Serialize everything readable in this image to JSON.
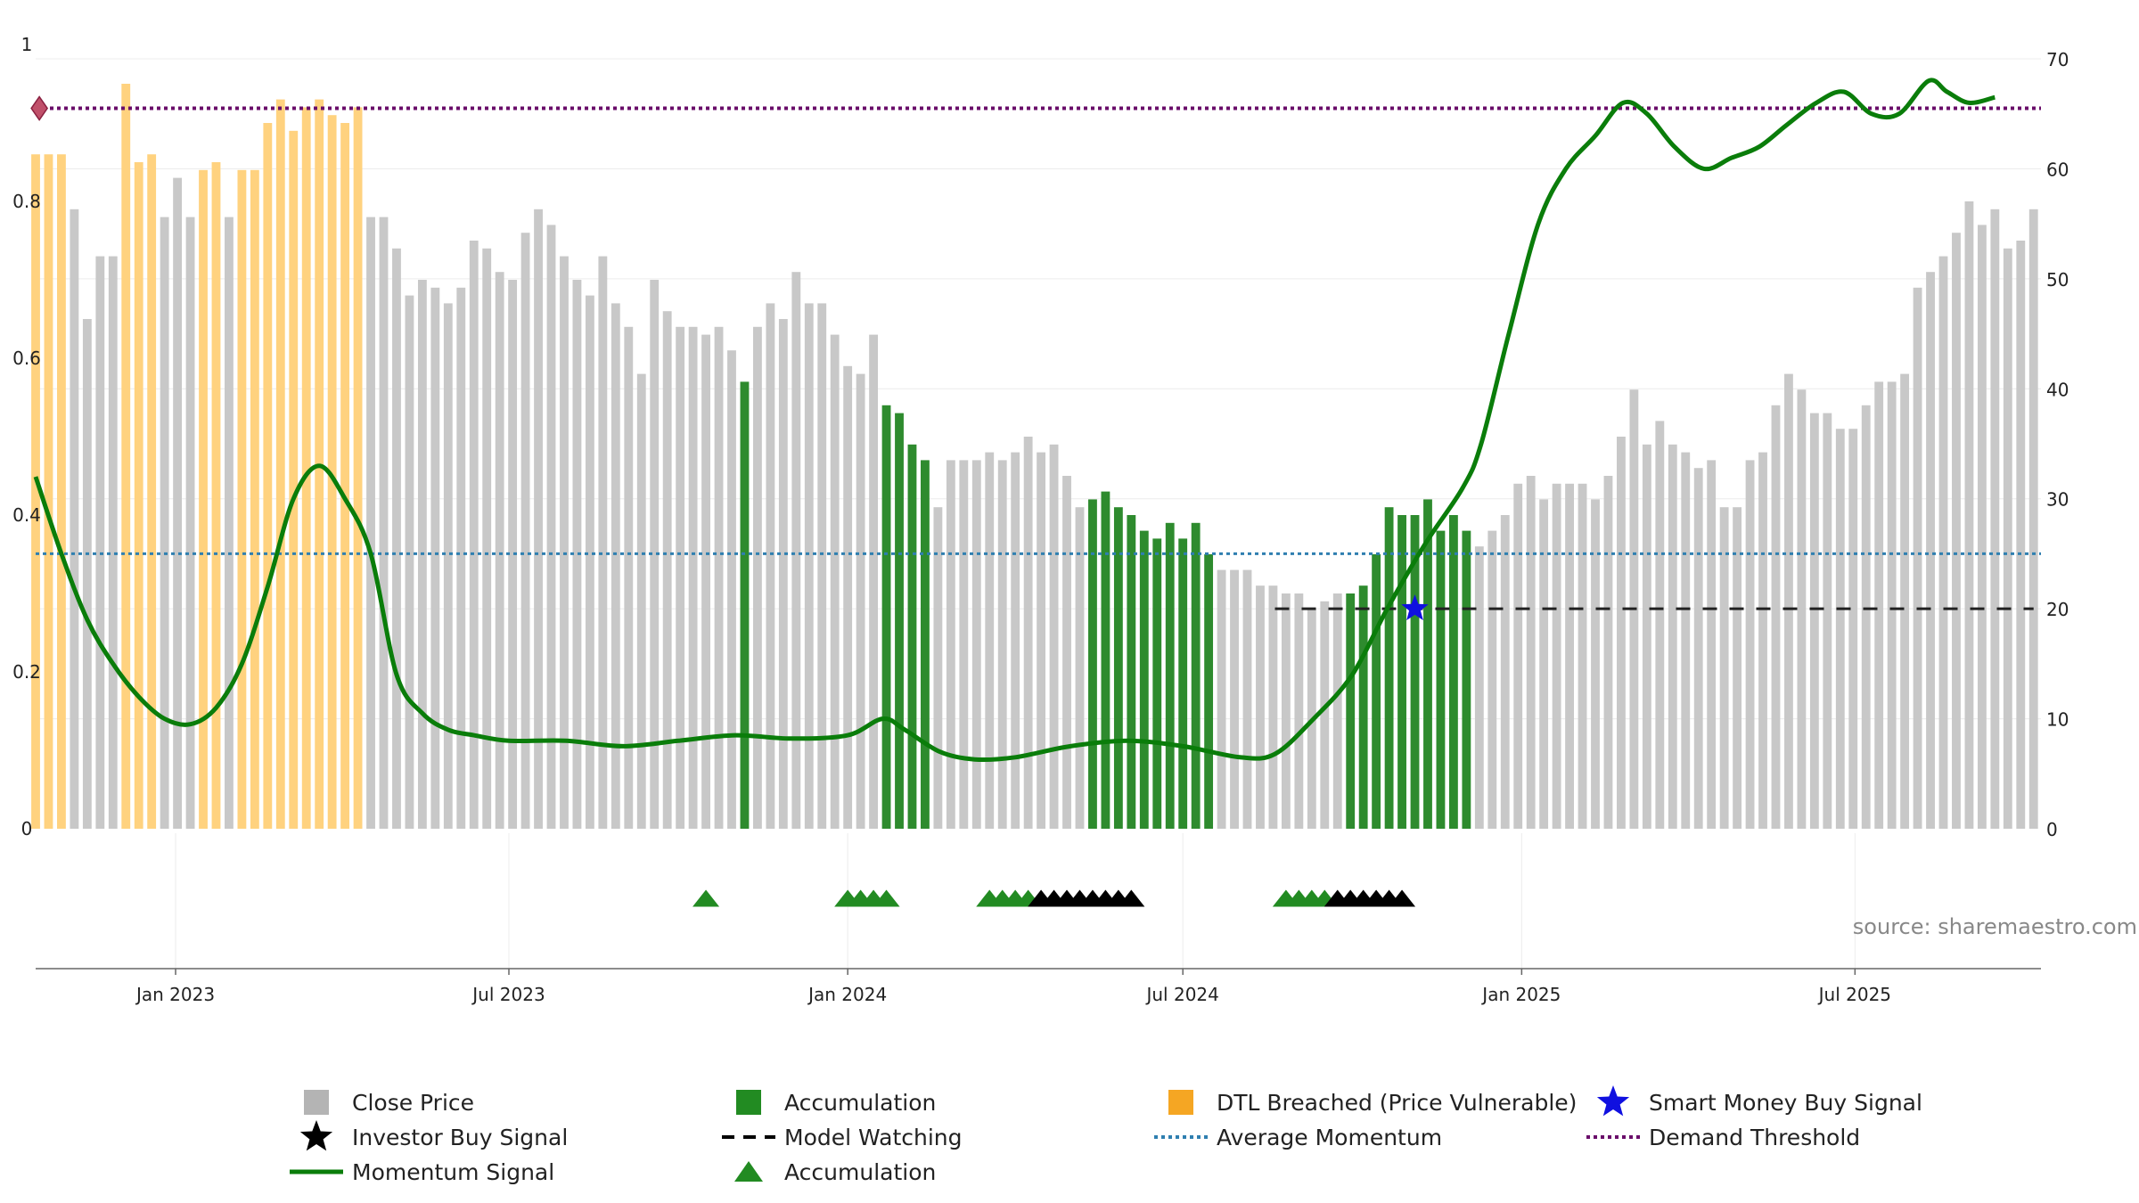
{
  "chart_data": {
    "type": "bar",
    "x_axis": {
      "type": "date",
      "tick_labels": [
        "Jan 2023",
        "Jul 2023",
        "Jan 2024",
        "Jul 2024",
        "Jan 2025",
        "Jul 2025"
      ],
      "tick_dates": [
        "2023-01-01",
        "2023-07-01",
        "2024-01-01",
        "2024-07-01",
        "2025-01-01",
        "2025-07-01"
      ],
      "range": [
        "2022-10-17",
        "2025-10-10"
      ]
    },
    "y_left": {
      "range": [
        0,
        1
      ],
      "ticks": [
        "0",
        "0.2",
        "0.4",
        "0.6",
        "0.8",
        "1"
      ]
    },
    "y_right": {
      "range": [
        0,
        70
      ],
      "ticks": [
        "0",
        "10",
        "20",
        "30",
        "40",
        "50",
        "60",
        "70"
      ]
    },
    "grid": true,
    "legend_position": "bottom",
    "source_text": "source: sharemaestro.com",
    "colors": {
      "close": "#c8c8c8",
      "accumulation": "#2e8b2e",
      "dtl": "#ffd27f",
      "momentum": "#0a7d0a",
      "smart_money": "#1010e0",
      "investor": "#000000",
      "watching": "#222222",
      "avg_momentum": "#2f7fb0",
      "demand": "#6a0d6a"
    },
    "bar_start_date": "2022-10-17",
    "bar_interval_days": 7,
    "close_price": [
      0.86,
      0.86,
      0.86,
      0.79,
      0.65,
      0.73,
      0.73,
      0.95,
      0.85,
      0.86,
      0.78,
      0.83,
      0.78,
      0.84,
      0.85,
      0.78,
      0.84,
      0.84,
      0.9,
      0.93,
      0.89,
      0.92,
      0.93,
      0.91,
      0.9,
      0.92,
      0.78,
      0.78,
      0.74,
      0.68,
      0.7,
      0.69,
      0.67,
      0.69,
      0.75,
      0.74,
      0.71,
      0.7,
      0.76,
      0.79,
      0.77,
      0.73,
      0.7,
      0.68,
      0.73,
      0.67,
      0.64,
      0.58,
      0.7,
      0.66,
      0.64,
      0.64,
      0.63,
      0.64,
      0.61,
      0.57,
      0.64,
      0.67,
      0.65,
      0.71,
      0.67,
      0.67,
      0.63,
      0.59,
      0.58,
      0.63,
      0.54,
      0.53,
      0.49,
      0.47,
      0.41,
      0.47,
      0.47,
      0.47,
      0.48,
      0.47,
      0.48,
      0.5,
      0.48,
      0.49,
      0.45,
      0.41,
      0.42,
      0.43,
      0.41,
      0.4,
      0.38,
      0.37,
      0.39,
      0.37,
      0.39,
      0.35,
      0.33,
      0.33,
      0.33,
      0.31,
      0.31,
      0.3,
      0.3,
      0.28,
      0.29,
      0.3,
      0.3,
      0.31,
      0.35,
      0.41,
      0.4,
      0.4,
      0.42,
      0.38,
      0.4,
      0.38,
      0.36,
      0.38,
      0.4,
      0.44,
      0.45,
      0.42,
      0.44,
      0.44,
      0.44,
      0.42,
      0.45,
      0.5,
      0.56,
      0.49,
      0.52,
      0.49,
      0.48,
      0.46,
      0.47,
      0.41,
      0.41,
      0.47,
      0.48,
      0.54,
      0.58,
      0.56,
      0.53,
      0.53,
      0.51,
      0.51,
      0.54,
      0.57,
      0.57,
      0.58,
      0.69,
      0.71,
      0.73,
      0.76,
      0.8,
      0.77,
      0.79,
      0.74,
      0.75,
      0.79
    ],
    "bar_type": "DDDGGGGDDDGGGDDGDDDDDDDDDDGGGGGGGGGGGGGGGGGGGGGGGGGGGGGAGGGGGGGGGGAAAAGGGGGGGGGGGGAAAAAAAAAAGGGGGGGGGGAAAAAAAAAAGGGGGGGGGGGGGGGGGGGGGGGGGGGGGGGGGGGGGGGGGGGGGG",
    "momentum_signal": [
      [
        "2022-10-17",
        32
      ],
      [
        "2022-10-31",
        25
      ],
      [
        "2022-11-14",
        19
      ],
      [
        "2022-11-28",
        15
      ],
      [
        "2022-12-12",
        12
      ],
      [
        "2022-12-26",
        10
      ],
      [
        "2023-01-09",
        9.5
      ],
      [
        "2023-01-23",
        11
      ],
      [
        "2023-02-06",
        15
      ],
      [
        "2023-02-20",
        22
      ],
      [
        "2023-03-06",
        30
      ],
      [
        "2023-03-20",
        33
      ],
      [
        "2023-04-03",
        30
      ],
      [
        "2023-04-17",
        25
      ],
      [
        "2023-05-01",
        14
      ],
      [
        "2023-05-15",
        10.5
      ],
      [
        "2023-05-29",
        9
      ],
      [
        "2023-06-12",
        8.5
      ],
      [
        "2023-07-01",
        8
      ],
      [
        "2023-08-01",
        8
      ],
      [
        "2023-09-01",
        7.5
      ],
      [
        "2023-10-01",
        8
      ],
      [
        "2023-11-01",
        8.5
      ],
      [
        "2023-12-01",
        8.2
      ],
      [
        "2024-01-01",
        8.5
      ],
      [
        "2024-01-20",
        10
      ],
      [
        "2024-02-01",
        9
      ],
      [
        "2024-02-20",
        7
      ],
      [
        "2024-03-10",
        6.3
      ],
      [
        "2024-04-01",
        6.5
      ],
      [
        "2024-05-01",
        7.5
      ],
      [
        "2024-06-01",
        8
      ],
      [
        "2024-07-01",
        7.5
      ],
      [
        "2024-08-01",
        6.5
      ],
      [
        "2024-08-20",
        6.8
      ],
      [
        "2024-09-10",
        10
      ],
      [
        "2024-10-01",
        14
      ],
      [
        "2024-10-20",
        20
      ],
      [
        "2024-11-10",
        26
      ],
      [
        "2024-11-30",
        31
      ],
      [
        "2024-12-10",
        35
      ],
      [
        "2024-12-25",
        45
      ],
      [
        "2025-01-10",
        55
      ],
      [
        "2025-01-25",
        60
      ],
      [
        "2025-02-10",
        63
      ],
      [
        "2025-02-25",
        66
      ],
      [
        "2025-03-10",
        65
      ],
      [
        "2025-03-25",
        62
      ],
      [
        "2025-04-10",
        60
      ],
      [
        "2025-04-25",
        61
      ],
      [
        "2025-05-10",
        62
      ],
      [
        "2025-05-25",
        64
      ],
      [
        "2025-06-10",
        66
      ],
      [
        "2025-06-25",
        67
      ],
      [
        "2025-07-10",
        65
      ],
      [
        "2025-07-25",
        65
      ],
      [
        "2025-08-10",
        68
      ],
      [
        "2025-08-20",
        67
      ],
      [
        "2025-09-01",
        66
      ],
      [
        "2025-09-15",
        66.5
      ]
    ],
    "average_momentum": 25,
    "demand_threshold": 65.5,
    "model_watching": {
      "value": 20,
      "start": "2024-08-20",
      "end": "2025-10-06"
    },
    "smart_money_buy_signal": [
      {
        "date": "2024-11-04",
        "value": 20
      }
    ],
    "dtl_marker": {
      "date": "2022-10-19",
      "value": 65.5
    },
    "accumulation_markers": [
      "2023-10-16",
      "2024-01-01",
      "2024-01-08",
      "2024-01-15",
      "2024-01-22",
      "2024-03-18",
      "2024-03-25",
      "2024-04-01",
      "2024-04-08",
      "2024-08-26",
      "2024-09-02",
      "2024-09-09",
      "2024-09-16"
    ],
    "investor_buy_markers": [
      "2024-04-15",
      "2024-04-22",
      "2024-04-29",
      "2024-05-06",
      "2024-05-13",
      "2024-05-20",
      "2024-05-27",
      "2024-06-03",
      "2024-09-23",
      "2024-09-30",
      "2024-10-07",
      "2024-10-14",
      "2024-10-21",
      "2024-10-28"
    ],
    "legend": [
      {
        "label": "Close Price",
        "symbol": "square",
        "color": "#b4b4b4"
      },
      {
        "label": "Accumulation",
        "symbol": "square",
        "color": "#228b22"
      },
      {
        "label": "DTL Breached (Price Vulnerable)",
        "symbol": "square",
        "color": "#f5a623"
      },
      {
        "label": "Smart Money Buy Signal",
        "symbol": "star",
        "color": "#1010e0"
      },
      {
        "label": "Investor Buy Signal",
        "symbol": "star",
        "color": "#000000"
      },
      {
        "label": "Model Watching",
        "symbol": "dash",
        "color": "#000000"
      },
      {
        "label": "Average Momentum",
        "symbol": "dot",
        "color": "#2f7fb0"
      },
      {
        "label": "Demand Threshold",
        "symbol": "dot",
        "color": "#6a0d6a"
      },
      {
        "label": "Momentum Signal",
        "symbol": "line",
        "color": "#0a7d0a"
      },
      {
        "label": "Accumulation",
        "symbol": "triangle",
        "color": "#228b22"
      }
    ]
  }
}
